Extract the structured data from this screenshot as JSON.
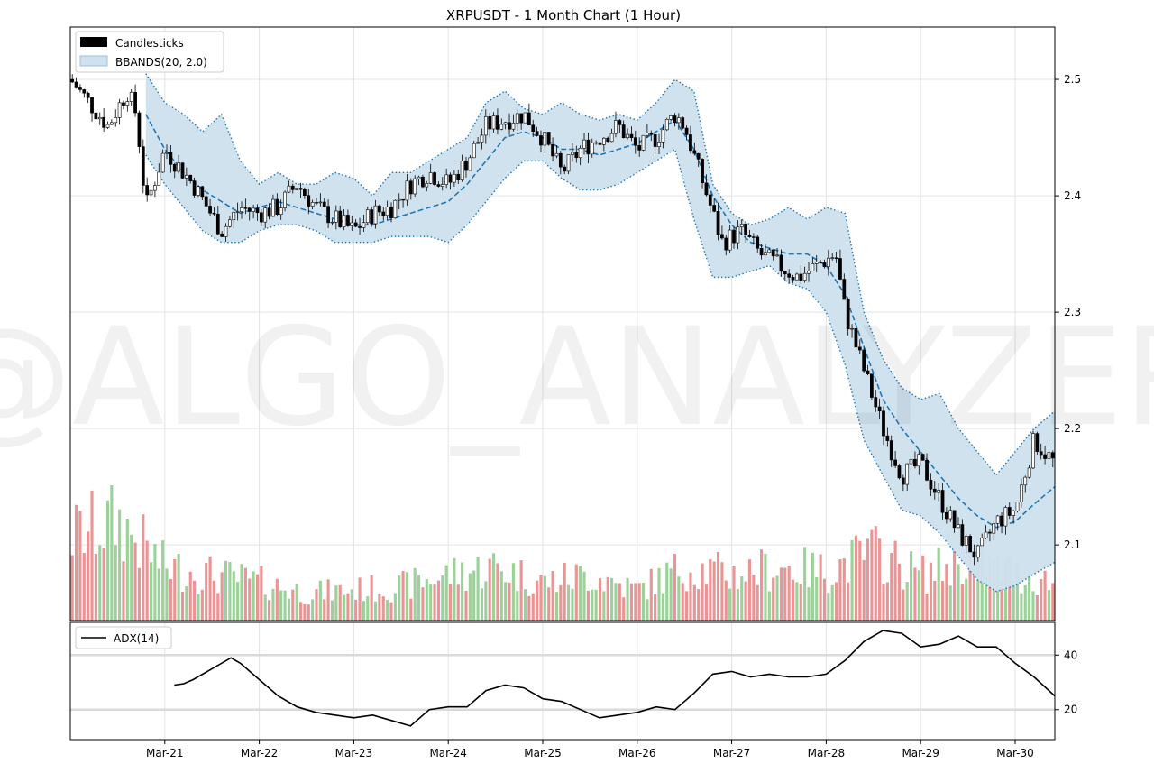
{
  "title": "XRPUSDT - 1 Month Chart (1 Hour)",
  "watermark": "@ALGO_ANALYZER",
  "legend_top": {
    "candles_label": "Candlesticks",
    "bbands_label": "BBANDS(20, 2.0)"
  },
  "legend_bottom": {
    "adx_label": "ADX(14)"
  },
  "colors": {
    "candle": "#000000",
    "band_fill": "#cfe0ee",
    "band_line": "#1f77b4",
    "vol_up": "#9dd19a",
    "vol_down": "#e99595",
    "adx": "#000000",
    "grid": "#e3e3e3",
    "watermark": "#eeeeee"
  },
  "chart_data": [
    {
      "type": "candlestick",
      "title": "XRPUSDT - 1 Month Chart (1 Hour)",
      "x_tick_labels": [
        "Mar-21",
        "Mar-22",
        "Mar-23",
        "Mar-24",
        "Mar-25",
        "Mar-26",
        "Mar-27",
        "Mar-28",
        "Mar-29",
        "Mar-30"
      ],
      "x_tick_days": [
        1,
        2,
        3,
        4,
        5,
        6,
        7,
        8,
        9,
        10
      ],
      "xlim_days": [
        0.0,
        10.42
      ],
      "ylim": [
        2.035,
        2.545
      ],
      "y_ticks": [
        2.1,
        2.2,
        2.3,
        2.4,
        2.5
      ],
      "grid": true,
      "legend_position": "top-left",
      "price_path": {
        "x_days": [
          0.0,
          0.2,
          0.4,
          0.6,
          0.7,
          0.8,
          1.0,
          1.3,
          1.6,
          1.8,
          2.0,
          2.2,
          2.4,
          2.6,
          2.8,
          3.0,
          3.2,
          3.4,
          3.6,
          3.8,
          4.0,
          4.2,
          4.4,
          4.6,
          4.8,
          5.0,
          5.2,
          5.4,
          5.6,
          5.8,
          6.0,
          6.2,
          6.4,
          6.5,
          6.7,
          6.9,
          7.1,
          7.3,
          7.5,
          7.7,
          7.9,
          8.1,
          8.2,
          8.4,
          8.6,
          8.8,
          9.0,
          9.2,
          9.4,
          9.6,
          9.8,
          10.0,
          10.2,
          10.42
        ],
        "close": [
          2.5,
          2.48,
          2.46,
          2.49,
          2.47,
          2.39,
          2.44,
          2.41,
          2.37,
          2.39,
          2.385,
          2.39,
          2.41,
          2.39,
          2.38,
          2.37,
          2.385,
          2.39,
          2.41,
          2.42,
          2.41,
          2.43,
          2.46,
          2.465,
          2.47,
          2.45,
          2.42,
          2.44,
          2.45,
          2.46,
          2.44,
          2.45,
          2.47,
          2.46,
          2.41,
          2.36,
          2.37,
          2.35,
          2.34,
          2.33,
          2.34,
          2.35,
          2.3,
          2.25,
          2.2,
          2.16,
          2.17,
          2.14,
          2.11,
          2.09,
          2.12,
          2.13,
          2.19,
          2.17
        ]
      },
      "bbands": {
        "x_days": [
          0.8,
          1.0,
          1.2,
          1.4,
          1.6,
          1.8,
          2.0,
          2.2,
          2.4,
          2.6,
          2.8,
          3.0,
          3.2,
          3.4,
          3.6,
          3.8,
          4.0,
          4.2,
          4.4,
          4.6,
          4.8,
          5.0,
          5.2,
          5.4,
          5.6,
          5.8,
          6.0,
          6.2,
          6.4,
          6.6,
          6.8,
          7.0,
          7.2,
          7.4,
          7.6,
          7.8,
          8.0,
          8.2,
          8.4,
          8.6,
          8.8,
          9.0,
          9.2,
          9.4,
          9.6,
          9.8,
          10.0,
          10.2,
          10.42
        ],
        "upper": [
          2.505,
          2.48,
          2.47,
          2.455,
          2.47,
          2.43,
          2.41,
          2.42,
          2.41,
          2.41,
          2.42,
          2.415,
          2.4,
          2.42,
          2.42,
          2.43,
          2.44,
          2.45,
          2.48,
          2.49,
          2.475,
          2.47,
          2.48,
          2.47,
          2.465,
          2.47,
          2.465,
          2.48,
          2.5,
          2.49,
          2.41,
          2.385,
          2.375,
          2.38,
          2.39,
          2.38,
          2.39,
          2.385,
          2.3,
          2.26,
          2.235,
          2.225,
          2.23,
          2.2,
          2.18,
          2.16,
          2.18,
          2.2,
          2.215
        ],
        "middle": [
          2.47,
          2.44,
          2.42,
          2.405,
          2.395,
          2.385,
          2.39,
          2.395,
          2.39,
          2.385,
          2.38,
          2.375,
          2.375,
          2.38,
          2.385,
          2.39,
          2.395,
          2.41,
          2.43,
          2.45,
          2.455,
          2.45,
          2.44,
          2.44,
          2.435,
          2.44,
          2.445,
          2.455,
          2.465,
          2.44,
          2.4,
          2.375,
          2.36,
          2.355,
          2.35,
          2.35,
          2.34,
          2.315,
          2.27,
          2.225,
          2.2,
          2.18,
          2.16,
          2.14,
          2.125,
          2.115,
          2.12,
          2.135,
          2.15
        ],
        "lower": [
          2.435,
          2.41,
          2.39,
          2.37,
          2.36,
          2.36,
          2.37,
          2.375,
          2.375,
          2.37,
          2.36,
          2.36,
          2.36,
          2.365,
          2.365,
          2.365,
          2.36,
          2.375,
          2.395,
          2.415,
          2.43,
          2.43,
          2.415,
          2.405,
          2.405,
          2.41,
          2.42,
          2.43,
          2.44,
          2.38,
          2.33,
          2.33,
          2.335,
          2.34,
          2.325,
          2.32,
          2.3,
          2.255,
          2.19,
          2.16,
          2.13,
          2.125,
          2.11,
          2.09,
          2.07,
          2.06,
          2.065,
          2.075,
          2.085
        ]
      },
      "volume": {
        "x_days": [
          0.0,
          0.5,
          1.0,
          1.5,
          2.0,
          2.5,
          3.0,
          3.5,
          4.0,
          4.5,
          5.0,
          5.5,
          6.0,
          6.5,
          7.0,
          7.5,
          8.0,
          8.5,
          9.0,
          9.5,
          10.0,
          10.42
        ],
        "relative_height": [
          0.55,
          0.65,
          0.35,
          0.3,
          0.25,
          0.18,
          0.2,
          0.22,
          0.3,
          0.35,
          0.25,
          0.3,
          0.2,
          0.35,
          0.3,
          0.35,
          0.32,
          0.45,
          0.3,
          0.4,
          0.3,
          0.25
        ]
      }
    },
    {
      "type": "line",
      "series": [
        {
          "name": "ADX(14)",
          "x_days": [
            1.1,
            1.2,
            1.3,
            1.5,
            1.7,
            1.8,
            2.0,
            2.2,
            2.4,
            2.6,
            2.8,
            3.0,
            3.2,
            3.4,
            3.6,
            3.8,
            4.0,
            4.2,
            4.4,
            4.6,
            4.8,
            5.0,
            5.2,
            5.4,
            5.6,
            5.8,
            6.0,
            6.2,
            6.4,
            6.6,
            6.8,
            7.0,
            7.2,
            7.4,
            7.6,
            7.8,
            8.0,
            8.2,
            8.4,
            8.6,
            8.8,
            9.0,
            9.2,
            9.4,
            9.6,
            9.8,
            10.0,
            10.2,
            10.42
          ],
          "values": [
            29,
            29.5,
            31,
            35,
            39,
            37,
            31,
            25,
            21,
            19,
            18,
            17,
            18,
            16,
            14,
            20,
            21,
            21,
            27,
            29,
            28,
            24,
            23,
            20,
            17,
            18,
            19,
            21,
            20,
            26,
            33,
            34,
            32,
            33,
            32,
            32,
            33,
            38,
            45,
            49,
            48,
            43,
            44,
            47,
            43,
            43,
            37,
            32,
            25
          ]
        }
      ],
      "y_ticks": [
        20,
        40
      ],
      "ylim": [
        9,
        52
      ],
      "legend_position": "top-left"
    }
  ]
}
